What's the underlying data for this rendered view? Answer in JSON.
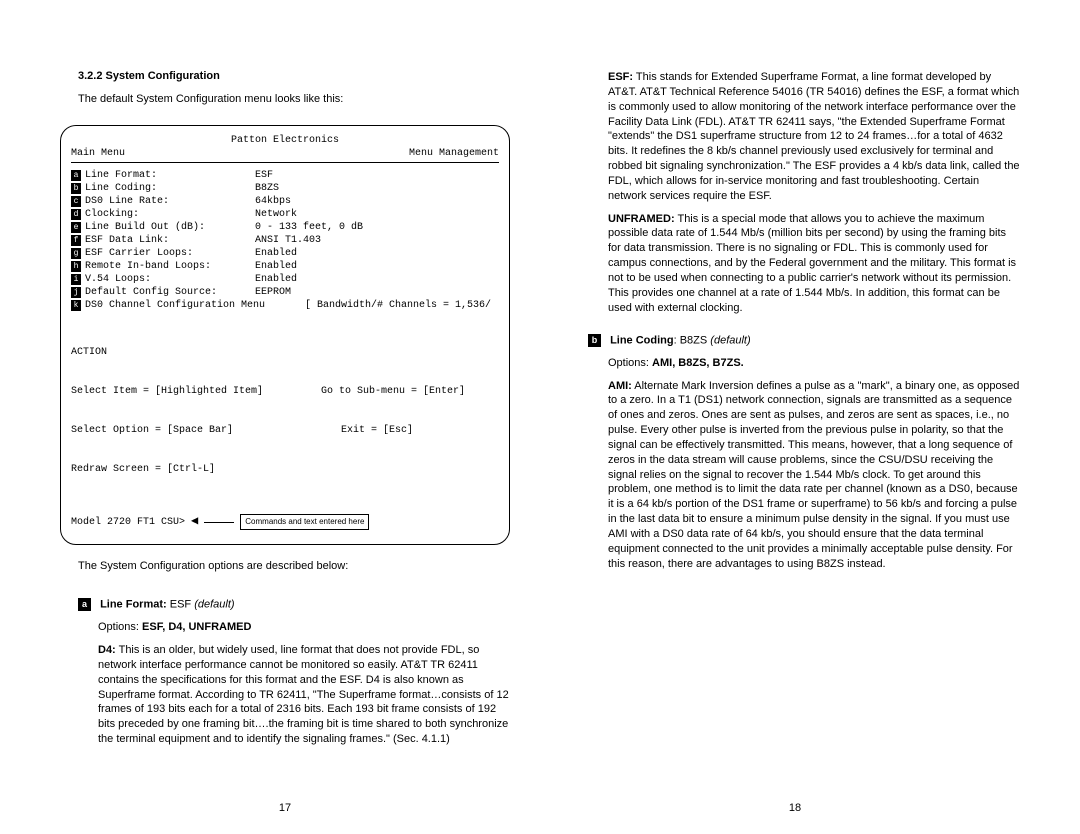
{
  "left": {
    "heading": "3.2.2  System Configuration",
    "intro": "The default System Configuration menu looks like this:",
    "terminal": {
      "company": "Patton Electronics",
      "menu_left": "Main Menu",
      "menu_right": "Menu Management",
      "rows": [
        {
          "l": "a",
          "label": "Line Format:",
          "val": "ESF"
        },
        {
          "l": "b",
          "label": "Line Coding:",
          "val": "B8ZS"
        },
        {
          "l": "c",
          "label": "DS0 Line Rate:",
          "val": "64kbps"
        },
        {
          "l": "d",
          "label": "Clocking:",
          "val": "Network"
        },
        {
          "l": "e",
          "label": "Line Build Out (dB):",
          "val": "0 - 133 feet, 0 dB"
        },
        {
          "l": "f",
          "label": "ESF Data Link:",
          "val": "ANSI T1.403"
        },
        {
          "l": "g",
          "label": "ESF Carrier Loops:",
          "val": "Enabled"
        },
        {
          "l": "h",
          "label": "Remote In-band Loops:",
          "val": "Enabled"
        },
        {
          "l": "i",
          "label": "V.54 Loops:",
          "val": "Enabled"
        },
        {
          "l": "j",
          "label": "Default Config Source:",
          "val": "EEPROM"
        },
        {
          "l": "k",
          "label": "DS0 Channel Configuration Menu",
          "val": "[ Bandwidth/# Channels = 1,536/"
        }
      ],
      "action_title": "ACTION",
      "action_l1a": "Select Item = [Highlighted Item]",
      "action_l1b": "Go to Sub-menu = [Enter]",
      "action_l2a": "Select Option = [Space Bar]",
      "action_l2b": "Exit = [Esc]",
      "action_l3": "Redraw Screen = [Ctrl-L]",
      "prompt": "Model 2720 FT1 CSU>",
      "callout": "Commands and text entered here"
    },
    "post_terminal": "The System Configuration options are described below:",
    "item_a": {
      "letter": "a",
      "title": "Line Format:",
      "default_val": "ESF",
      "default_word": "(default)",
      "options_label": "Options:",
      "options": "ESF, D4, UNFRAMED",
      "d4_label": "D4:",
      "d4_text": "This is an older, but widely used, line format that does not provide FDL, so network interface performance cannot be monitored so easily. AT&T TR 62411 contains the specifications for this format and the ESF.  D4 is also known as Superframe format. According to TR 62411, \"The Superframe format…consists of 12 frames of 193 bits each for a total of 2316 bits. Each 193 bit frame consists of 192 bits preceded by one framing bit….the framing bit is time shared to both synchronize the terminal equipment and to identify the signaling frames.\" (Sec. 4.1.1)"
    },
    "page": "17"
  },
  "right": {
    "esf_label": "ESF:",
    "esf_text": "This stands for Extended Superframe Format, a line format developed by AT&T. AT&T Technical Reference 54016 (TR 54016) defines the ESF, a format which is commonly used to allow monitoring of the network interface performance over the Facility Data Link (FDL). AT&T TR 62411 says, \"the Extended Superframe Format \"extends\" the DS1 superframe structure from 12 to 24 frames…for a total of 4632 bits. It redefines the 8 kb/s channel previously used exclusively for terminal and robbed bit signaling synchronization.\" The ESF provides a 4 kb/s data link, called the FDL, which allows for in-service monitoring and fast troubleshooting. Certain network services require the ESF.",
    "unframed_label": "UNFRAMED:",
    "unframed_text": "This is a special mode that allows you to achieve the maximum possible data rate of 1.544 Mb/s (million bits per second) by using the framing bits for data transmission. There is no signaling or FDL. This is commonly used for campus connections, and by the Federal government and the military. This format is not to be used when connecting to a public carrier's network without its permission. This provides one channel at a rate of 1.544 Mb/s. In addition, this format can be used with external clocking.",
    "item_b": {
      "letter": "b",
      "title": "Line Coding",
      "default_val": "B8ZS",
      "default_word": "(default)",
      "options_label": "Options:",
      "options": "AMI, B8ZS, B7ZS.",
      "ami_label": "AMI:",
      "ami_text": "Alternate Mark Inversion defines a pulse as a \"mark\", a binary one, as opposed to a zero. In a T1 (DS1) network connection, signals are transmitted as a sequence of ones and zeros. Ones are sent as pulses, and zeros are sent as spaces, i.e., no pulse.  Every other pulse is inverted from the previous pulse in polarity, so that the signal can be effectively transmitted. This means, however, that a long sequence of zeros in the data stream will cause problems, since the CSU/DSU receiving the signal relies on the signal to recover the 1.544 Mb/s clock. To get around this problem, one method is to limit the data rate per channel (known as a DS0, because it is a 64 kb/s portion of the DS1 frame or superframe) to 56 kb/s and forcing a pulse in the last data bit to ensure a minimum pulse density in the signal. If you must use AMI with a DS0 data rate of 64 kb/s, you should ensure that the data terminal equipment connected to the unit provides a minimally acceptable pulse density. For this reason, there are advantages to using B8ZS instead."
    },
    "page": "18"
  }
}
